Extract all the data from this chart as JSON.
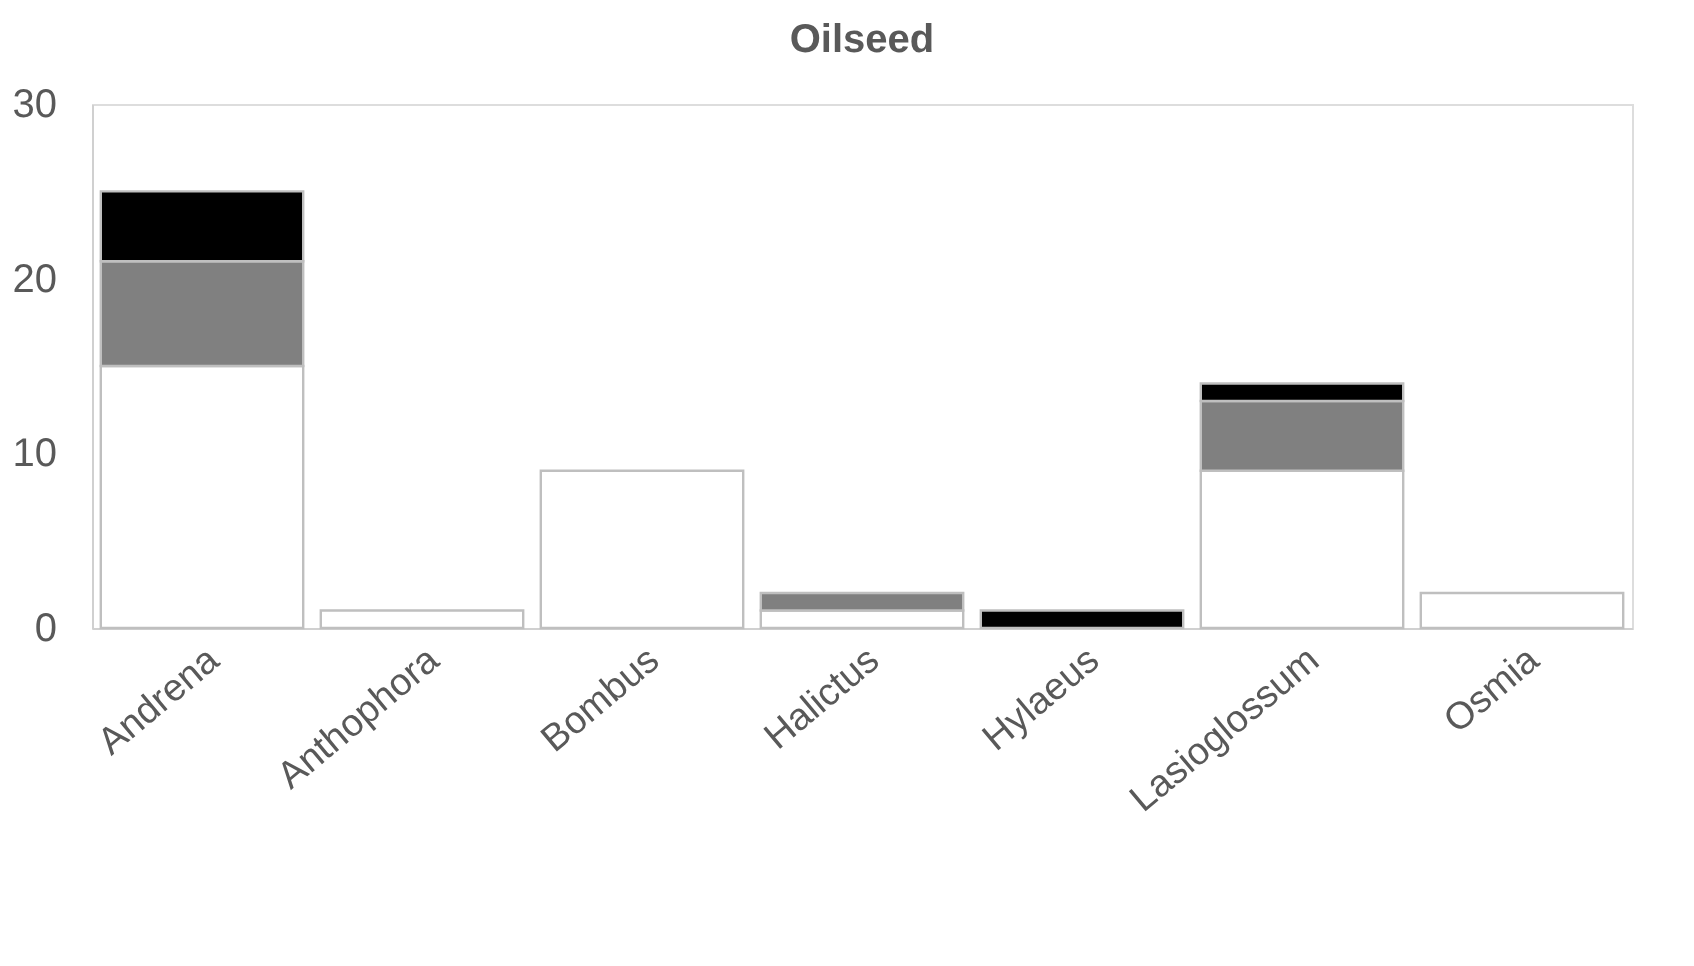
{
  "chart_data": {
    "type": "bar",
    "title": "Oilseed",
    "stacked": true,
    "categories": [
      "Andrena",
      "Anthophora",
      "Bombus",
      "Halictus",
      "Hylaeus",
      "Lasioglossum",
      "Osmia"
    ],
    "series": [
      {
        "color": "#ffffff",
        "values": [
          15,
          1,
          9,
          1,
          null,
          9,
          2
        ]
      },
      {
        "color": "#808080",
        "values": [
          6,
          null,
          null,
          1,
          null,
          4,
          null
        ]
      },
      {
        "color": "#000000",
        "values": [
          4,
          null,
          null,
          null,
          1,
          1,
          null
        ]
      }
    ],
    "ylim": [
      0,
      30
    ],
    "yticks": [
      0,
      10,
      20,
      30
    ],
    "grid": false,
    "legend": false
  }
}
